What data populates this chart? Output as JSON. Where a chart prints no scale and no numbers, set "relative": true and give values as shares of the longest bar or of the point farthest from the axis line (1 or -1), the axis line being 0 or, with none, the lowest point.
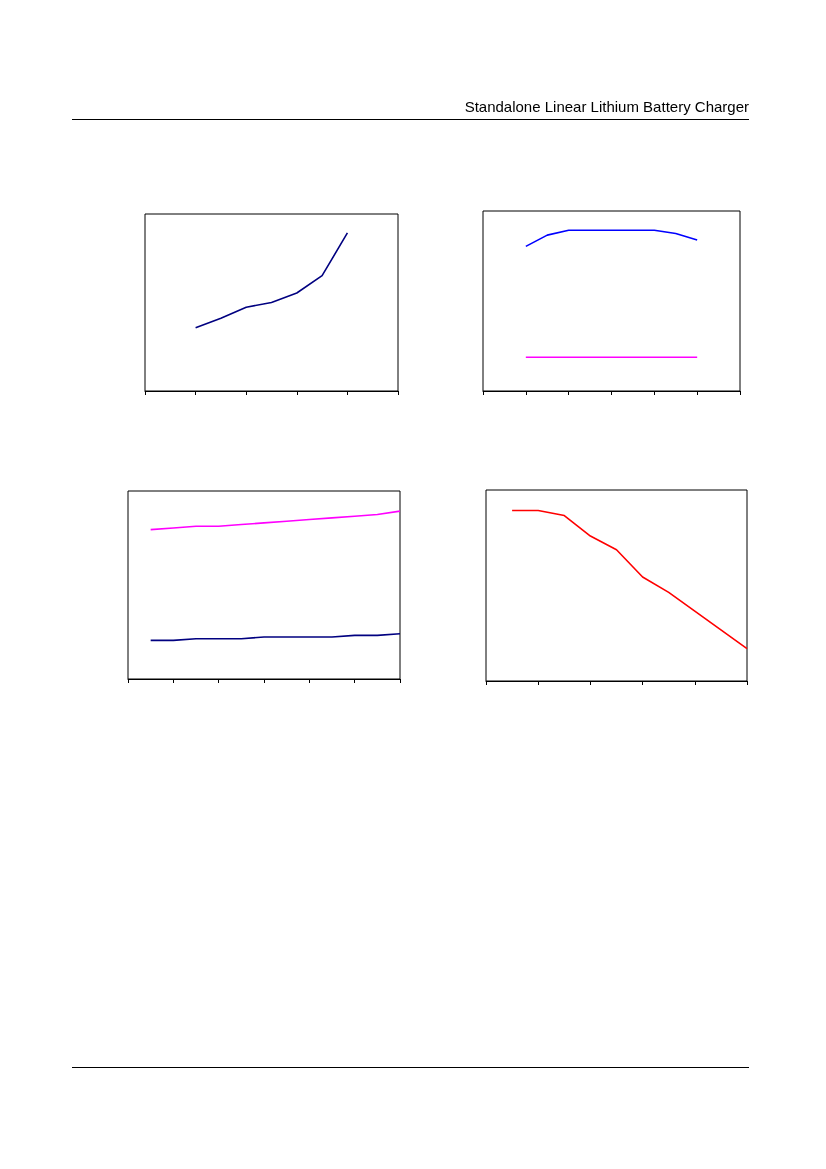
{
  "chart_data": [
    {
      "type": "line",
      "relative": true,
      "categories": [
        null,
        null,
        null,
        null,
        null,
        null,
        null,
        null,
        null,
        null,
        null
      ],
      "series": [
        {
          "color": "#000080",
          "values": [
            null,
            null,
            0.4,
            0.46,
            0.53,
            0.56,
            0.62,
            0.73,
            1.0,
            null,
            null
          ]
        }
      ]
    },
    {
      "type": "line",
      "annotations": [
        "Standalone Linear Lithium Battery Charger"
      ],
      "relative": true,
      "categories": [
        null,
        null,
        null,
        null,
        null,
        null,
        null,
        null,
        null,
        null,
        null,
        null,
        null
      ],
      "series": [
        {
          "color": "#0000ff",
          "values": [
            null,
            null,
            0.9,
            0.97,
            1.0,
            1.0,
            1.0,
            1.0,
            1.0,
            0.98,
            0.94,
            null,
            null
          ]
        },
        {
          "color": "#ff00ff",
          "values": [
            null,
            null,
            0.21,
            0.21,
            0.21,
            0.21,
            0.21,
            0.21,
            0.21,
            0.21,
            0.21,
            null,
            null
          ]
        }
      ]
    },
    {
      "type": "line",
      "relative": true,
      "categories": [
        null,
        null,
        null,
        null,
        null,
        null,
        null,
        null,
        null,
        null,
        null,
        null,
        null
      ],
      "series": [
        {
          "color": "#ff00ff",
          "values": [
            null,
            0.89,
            0.9,
            0.91,
            0.91,
            0.92,
            0.93,
            0.94,
            0.95,
            0.96,
            0.97,
            0.98,
            1.0
          ]
        },
        {
          "color": "#000080",
          "values": [
            null,
            0.23,
            0.23,
            0.24,
            0.24,
            0.24,
            0.25,
            0.25,
            0.25,
            0.25,
            0.26,
            0.26,
            0.27
          ]
        }
      ]
    },
    {
      "type": "line",
      "relative": true,
      "categories": [
        null,
        null,
        null,
        null,
        null,
        null,
        null,
        null,
        null,
        null,
        null
      ],
      "series": [
        {
          "color": "#ff0000",
          "values": [
            null,
            1.0,
            1.0,
            0.97,
            0.85,
            0.77,
            0.61,
            0.52,
            0.41,
            0.3,
            0.19
          ]
        }
      ]
    }
  ]
}
